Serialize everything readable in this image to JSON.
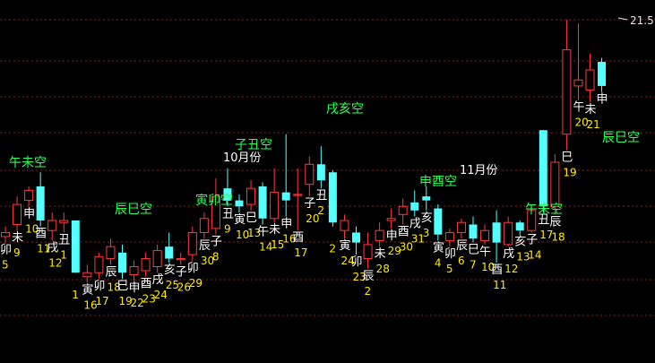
{
  "chart_data": {
    "type": "candlestick",
    "y_axis_label": "21.5",
    "grid": true,
    "month_labels": [
      "10月份",
      "11月份"
    ],
    "kong_labels": [
      "午未空",
      "辰巳空",
      "寅卯空",
      "子丑空",
      "戌亥空",
      "申酉空",
      "午未空",
      "辰巳空"
    ],
    "candles": [
      {
        "day": "5",
        "branch": "卯",
        "open": 10.7,
        "close": 10.9,
        "high": 11.2,
        "low": 10.4
      },
      {
        "day": "9",
        "branch": "未",
        "open": 11.3,
        "close": 12.3,
        "high": 12.7,
        "low": 11.0
      },
      {
        "day": "10",
        "branch": "申",
        "open": 12.5,
        "close": 13.0,
        "high": 13.2,
        "low": 12.2
      },
      {
        "day": "11",
        "branch": "酉",
        "open": 13.2,
        "close": 11.5,
        "high": 13.9,
        "low": 11.2
      },
      {
        "day": "12",
        "branch": "戌",
        "open": 11.0,
        "close": 11.5,
        "high": 11.9,
        "low": 10.5
      },
      {
        "day": "1",
        "branch": "丑",
        "open": 11.4,
        "close": 11.5,
        "high": 11.9,
        "low": 10.9
      },
      {
        "day": "1",
        "branch": "",
        "open": 11.5,
        "close": 8.9,
        "high": 11.5,
        "low": 8.9
      },
      {
        "day": "16",
        "branch": "寅",
        "open": 8.7,
        "close": 8.9,
        "high": 9.3,
        "low": 8.4
      },
      {
        "day": "17",
        "branch": "卯",
        "open": 8.9,
        "close": 9.7,
        "high": 9.9,
        "low": 8.6
      },
      {
        "day": "18",
        "branch": "辰",
        "open": 9.6,
        "close": 10.2,
        "high": 10.6,
        "low": 9.3
      },
      {
        "day": "19",
        "branch": "巳",
        "open": 9.9,
        "close": 8.9,
        "high": 10.3,
        "low": 8.6
      },
      {
        "day": "22",
        "branch": "申",
        "open": 8.8,
        "close": 9.2,
        "high": 9.5,
        "low": 8.5
      },
      {
        "day": "23",
        "branch": "酉",
        "open": 9.0,
        "close": 9.6,
        "high": 9.9,
        "low": 8.7
      },
      {
        "day": "24",
        "branch": "戌",
        "open": 9.2,
        "close": 10.0,
        "high": 10.3,
        "low": 8.9
      },
      {
        "day": "25",
        "branch": "亥",
        "open": 10.2,
        "close": 9.6,
        "high": 10.9,
        "low": 9.4
      },
      {
        "day": "26",
        "branch": "子",
        "open": 9.6,
        "close": 9.6,
        "high": 9.9,
        "low": 9.3
      },
      {
        "day": "29",
        "branch": "卯",
        "open": 9.8,
        "close": 10.9,
        "high": 11.2,
        "low": 9.5
      },
      {
        "day": "30",
        "branch": "辰",
        "open": 10.9,
        "close": 11.6,
        "high": 11.9,
        "low": 10.6
      },
      {
        "day": "8",
        "branch": "子",
        "open": 11.1,
        "close": 12.7,
        "high": 13.6,
        "low": 10.8
      },
      {
        "day": "9",
        "branch": "丑",
        "open": 13.1,
        "close": 12.5,
        "high": 14.1,
        "low": 12.2
      },
      {
        "day": "10",
        "branch": "寅",
        "open": 12.5,
        "close": 12.2,
        "high": 12.8,
        "low": 11.9
      },
      {
        "day": "13",
        "branch": "巳",
        "open": 12.3,
        "close": 13.1,
        "high": 13.5,
        "low": 12.0
      },
      {
        "day": "14",
        "branch": "午",
        "open": 13.2,
        "close": 11.6,
        "high": 13.4,
        "low": 11.3
      },
      {
        "day": "15",
        "branch": "未",
        "open": 11.6,
        "close": 12.9,
        "high": 14.1,
        "low": 11.4
      },
      {
        "day": "16",
        "branch": "申",
        "open": 12.9,
        "close": 12.5,
        "high": 15.8,
        "low": 11.7
      },
      {
        "day": "17",
        "branch": "酉",
        "open": 12.8,
        "close": 12.8,
        "high": 14.1,
        "low": 11.0
      },
      {
        "day": "20",
        "branch": "子",
        "open": 13.3,
        "close": 14.3,
        "high": 14.7,
        "low": 12.7
      },
      {
        "day": "2",
        "branch": "丑",
        "open": 14.3,
        "close": 13.5,
        "high": 15.2,
        "low": 13.1
      },
      {
        "day": "2",
        "branch": "",
        "open": 13.9,
        "close": 11.4,
        "high": 14.0,
        "low": 11.2
      },
      {
        "day": "24",
        "branch": "寅",
        "open": 11.0,
        "close": 11.5,
        "high": 11.8,
        "low": 10.6
      },
      {
        "day": "23",
        "branch": "卯",
        "open": 10.9,
        "close": 10.4,
        "high": 11.2,
        "low": 9.8
      },
      {
        "day": "2",
        "branch": "辰",
        "open": 9.6,
        "close": 10.3,
        "high": 10.9,
        "low": 9.1
      },
      {
        "day": "28",
        "branch": "未",
        "open": 10.5,
        "close": 11.0,
        "high": 11.4,
        "low": 10.2
      },
      {
        "day": "29",
        "branch": "申",
        "open": 11.5,
        "close": 11.6,
        "high": 12.1,
        "low": 11.1
      },
      {
        "day": "30",
        "branch": "酉",
        "open": 11.8,
        "close": 12.2,
        "high": 12.6,
        "low": 11.3
      },
      {
        "day": "31",
        "branch": "戌",
        "open": 12.4,
        "close": 12.0,
        "high": 13.0,
        "low": 11.7
      },
      {
        "day": "3",
        "branch": "亥",
        "open": 12.7,
        "close": 12.5,
        "high": 13.2,
        "low": 12.0
      },
      {
        "day": "4",
        "branch": "寅",
        "open": 12.1,
        "close": 10.8,
        "high": 12.3,
        "low": 10.5
      },
      {
        "day": "5",
        "branch": "卯",
        "open": 10.5,
        "close": 10.9,
        "high": 11.1,
        "low": 10.2
      },
      {
        "day": "6",
        "branch": "辰",
        "open": 10.9,
        "close": 11.4,
        "high": 11.6,
        "low": 10.6
      },
      {
        "day": "7",
        "branch": "巳",
        "open": 11.3,
        "close": 10.6,
        "high": 11.7,
        "low": 10.4
      },
      {
        "day": "10",
        "branch": "午",
        "open": 10.5,
        "close": 11.0,
        "high": 11.3,
        "low": 10.3
      },
      {
        "day": "11",
        "branch": "酉",
        "open": 11.4,
        "close": 10.4,
        "high": 12.0,
        "low": 9.4
      },
      {
        "day": "12",
        "branch": "戌",
        "open": 10.3,
        "close": 11.4,
        "high": 11.7,
        "low": 10.2
      },
      {
        "day": "13",
        "branch": "亥",
        "open": 11.4,
        "close": 11.0,
        "high": 11.5,
        "low": 10.8
      },
      {
        "day": "14",
        "branch": "子",
        "open": 11.0,
        "close": 12.0,
        "high": 12.3,
        "low": 10.9
      },
      {
        "day": "17",
        "branch": "丑",
        "open": 16.0,
        "close": 12.2,
        "high": 16.0,
        "low": 11.9
      },
      {
        "day": "18",
        "branch": "辰",
        "open": 12.2,
        "close": 14.4,
        "high": 14.8,
        "low": 11.8
      },
      {
        "day": "19",
        "branch": "巳",
        "open": 15.8,
        "close": 20.0,
        "high": 21.5,
        "low": 15.0
      },
      {
        "day": "20",
        "branch": "午",
        "open": 18.2,
        "close": 18.5,
        "high": 21.3,
        "low": 17.5
      },
      {
        "day": "21",
        "branch": "未",
        "open": 18.0,
        "close": 19.0,
        "high": 19.8,
        "low": 17.4
      },
      {
        "day": "",
        "branch": "申",
        "open": 19.4,
        "close": 18.2,
        "high": 19.6,
        "low": 17.9
      }
    ],
    "colors": {
      "up": "#ff3b3b",
      "down": "#54ffff",
      "grid": "#8b1e1e",
      "kong": "#2bff55",
      "day": "#ffea00",
      "branch": "#ffffff",
      "month": "#ffffff",
      "axis": "#e6e6e6"
    }
  }
}
